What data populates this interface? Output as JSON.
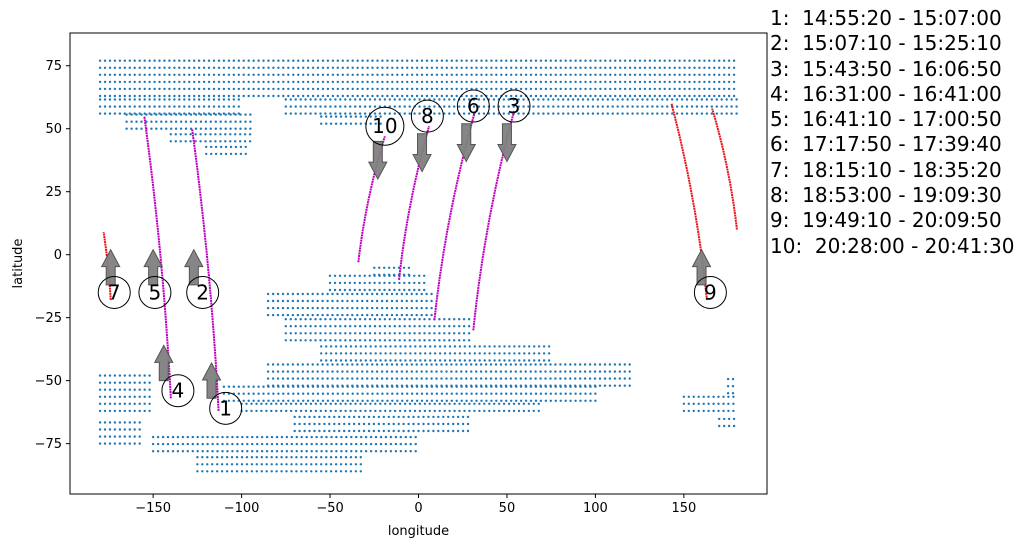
{
  "chart_data": {
    "type": "scatter",
    "title": "",
    "xlabel": "longitude",
    "ylabel": "latitude",
    "xlim": [
      -197,
      197
    ],
    "ylim": [
      -95,
      88
    ],
    "xticks": [
      -150,
      -100,
      -50,
      0,
      50,
      100,
      150
    ],
    "yticks": [
      -75,
      -50,
      -25,
      0,
      25,
      50,
      75
    ],
    "grid": false,
    "legend_placement": "right, outside plot",
    "colors": {
      "land_points": "#1f77b4",
      "track_primary": "#bf00bf",
      "track_secondary": "#e8141b",
      "arrow": "#808080"
    },
    "land_regions": [
      {
        "lat": [
          63,
          77
        ],
        "lon": [
          -180,
          180
        ]
      },
      {
        "lat": [
          56,
          63
        ],
        "lon": [
          -180,
          -100
        ]
      },
      {
        "lat": [
          50,
          56
        ],
        "lon": [
          -165,
          -95
        ]
      },
      {
        "lat": [
          45,
          50
        ],
        "lon": [
          -140,
          -95
        ]
      },
      {
        "lat": [
          40,
          45
        ],
        "lon": [
          -120,
          -95
        ]
      },
      {
        "lat": [
          56,
          63
        ],
        "lon": [
          -75,
          180
        ]
      },
      {
        "lat": [
          52,
          56
        ],
        "lon": [
          -55,
          -20
        ]
      },
      {
        "lat": [
          -8,
          -3
        ],
        "lon": [
          -25,
          -5
        ]
      },
      {
        "lat": [
          -14,
          -8
        ],
        "lon": [
          -50,
          5
        ]
      },
      {
        "lat": [
          -24,
          -14
        ],
        "lon": [
          -85,
          10
        ]
      },
      {
        "lat": [
          -34,
          -24
        ],
        "lon": [
          -75,
          30
        ]
      },
      {
        "lat": [
          -42,
          -34
        ],
        "lon": [
          -55,
          75
        ]
      },
      {
        "lat": [
          -52,
          -42
        ],
        "lon": [
          -85,
          120
        ]
      },
      {
        "lat": [
          -58,
          -52
        ],
        "lon": [
          -110,
          100
        ]
      },
      {
        "lat": [
          -62,
          -58
        ],
        "lon": [
          -100,
          70
        ]
      },
      {
        "lat": [
          -70,
          -62
        ],
        "lon": [
          -70,
          30
        ]
      },
      {
        "lat": [
          -78,
          -70
        ],
        "lon": [
          -150,
          0
        ]
      },
      {
        "lat": [
          -86,
          -78
        ],
        "lon": [
          -125,
          -30
        ]
      },
      {
        "lat": [
          -62,
          -48
        ],
        "lon": [
          -180,
          -150
        ]
      },
      {
        "lat": [
          -75,
          -64
        ],
        "lon": [
          -180,
          -155
        ]
      },
      {
        "lat": [
          -62,
          -55
        ],
        "lon": [
          150,
          180
        ]
      },
      {
        "lat": [
          -68,
          -65
        ],
        "lon": [
          170,
          180
        ]
      },
      {
        "lat": [
          -55,
          -48
        ],
        "lon": [
          175,
          180
        ]
      }
    ],
    "tracks": [
      {
        "label": "1",
        "time": "14:55:20 - 15:07:00",
        "color": "#bf00bf",
        "start": [
          -113,
          -62
        ],
        "end": [
          -128,
          50
        ],
        "marker": [
          -109,
          -61
        ],
        "arrow": "up",
        "arrow_tail": [
          -117,
          -57
        ],
        "arrow_tip": [
          -117,
          -43
        ]
      },
      {
        "label": "2",
        "time": "15:07:10 - 15:25:10",
        "color": "#bf00bf",
        "start": [
          -122,
          -15
        ],
        "end": [
          -122,
          -15
        ],
        "marker": [
          -122,
          -15
        ],
        "arrow": "up",
        "arrow_tail": [
          -127,
          -12
        ],
        "arrow_tip": [
          -127,
          2
        ]
      },
      {
        "label": "3",
        "time": "15:43:50 - 16:06:50",
        "color": "#bf00bf",
        "start": [
          31,
          -30
        ],
        "end": [
          54,
          57
        ],
        "marker": [
          54,
          59
        ],
        "arrow": "down",
        "arrow_tail": [
          50,
          52
        ],
        "arrow_tip": [
          50,
          37
        ]
      },
      {
        "label": "4",
        "time": "16:31:00 - 16:41:00",
        "color": "#bf00bf",
        "start": [
          -140,
          -57
        ],
        "end": [
          -155,
          55
        ],
        "marker": [
          -136,
          -54
        ],
        "arrow": "up",
        "arrow_tail": [
          -144,
          -50
        ],
        "arrow_tip": [
          -144,
          -36
        ]
      },
      {
        "label": "5",
        "time": "16:41:10 - 17:00:50",
        "color": "#bf00bf",
        "start": [
          -149,
          -15
        ],
        "end": [
          -149,
          -15
        ],
        "marker": [
          -149,
          -15
        ],
        "arrow": "up",
        "arrow_tail": [
          -150,
          -12
        ],
        "arrow_tip": [
          -150,
          2
        ]
      },
      {
        "label": "6",
        "time": "17:17:50 - 17:39:40",
        "color": "#bf00bf",
        "start": [
          9,
          -26
        ],
        "end": [
          32,
          57
        ],
        "marker": [
          31,
          59
        ],
        "arrow": "down",
        "arrow_tail": [
          27,
          52
        ],
        "arrow_tip": [
          27,
          37
        ]
      },
      {
        "label": "7",
        "time": "18:15:10 - 18:35:20",
        "color": "#e8141b",
        "start": [
          -174,
          -18
        ],
        "end": [
          -178,
          9
        ],
        "marker": [
          -172,
          -15
        ],
        "arrow": "up",
        "arrow_tail": [
          -174,
          -12
        ],
        "arrow_tip": [
          -174,
          2
        ]
      },
      {
        "label": "8",
        "time": "18:53:00 - 19:09:30",
        "color": "#bf00bf",
        "start": [
          -11,
          -10
        ],
        "end": [
          6,
          51
        ],
        "marker": [
          5,
          55
        ],
        "arrow": "down",
        "arrow_tail": [
          2,
          48
        ],
        "arrow_tip": [
          2,
          33
        ]
      },
      {
        "label": "9",
        "time": "19:49:10 - 20:09:50",
        "color": "#e8141b",
        "start": [
          163,
          -18
        ],
        "end": [
          143,
          60
        ],
        "marker": [
          165,
          -15
        ],
        "arrow": "up",
        "arrow_tail": [
          160,
          -12
        ],
        "arrow_tip": [
          160,
          2
        ]
      },
      {
        "label": "10",
        "time": "20:28:00 - 20:41:30",
        "color": "#bf00bf",
        "start": [
          -34,
          -3
        ],
        "end": [
          -19,
          47
        ],
        "marker": [
          -19,
          51
        ],
        "arrow": "down",
        "arrow_tail": [
          -23,
          45
        ],
        "arrow_tip": [
          -23,
          30
        ]
      }
    ],
    "extra_tracks": [
      {
        "color": "#e8141b",
        "start": [
          180,
          10
        ],
        "end": [
          166,
          58
        ]
      },
      {
        "color": "#bf00bf",
        "start": [
          -150,
          -40
        ],
        "end": [
          -150,
          -40
        ]
      }
    ]
  },
  "legend": {
    "items": [
      "1:  14:55:20 - 15:07:00",
      "2:  15:07:10 - 15:25:10",
      "3:  15:43:50 - 16:06:50",
      "4:  16:31:00 - 16:41:00",
      "5:  16:41:10 - 17:00:50",
      "6:  17:17:50 - 17:39:40",
      "7:  18:15:10 - 18:35:20",
      "8:  18:53:00 - 19:09:30",
      "9:  19:49:10 - 20:09:50",
      "10:  20:28:00 - 20:41:30"
    ]
  }
}
